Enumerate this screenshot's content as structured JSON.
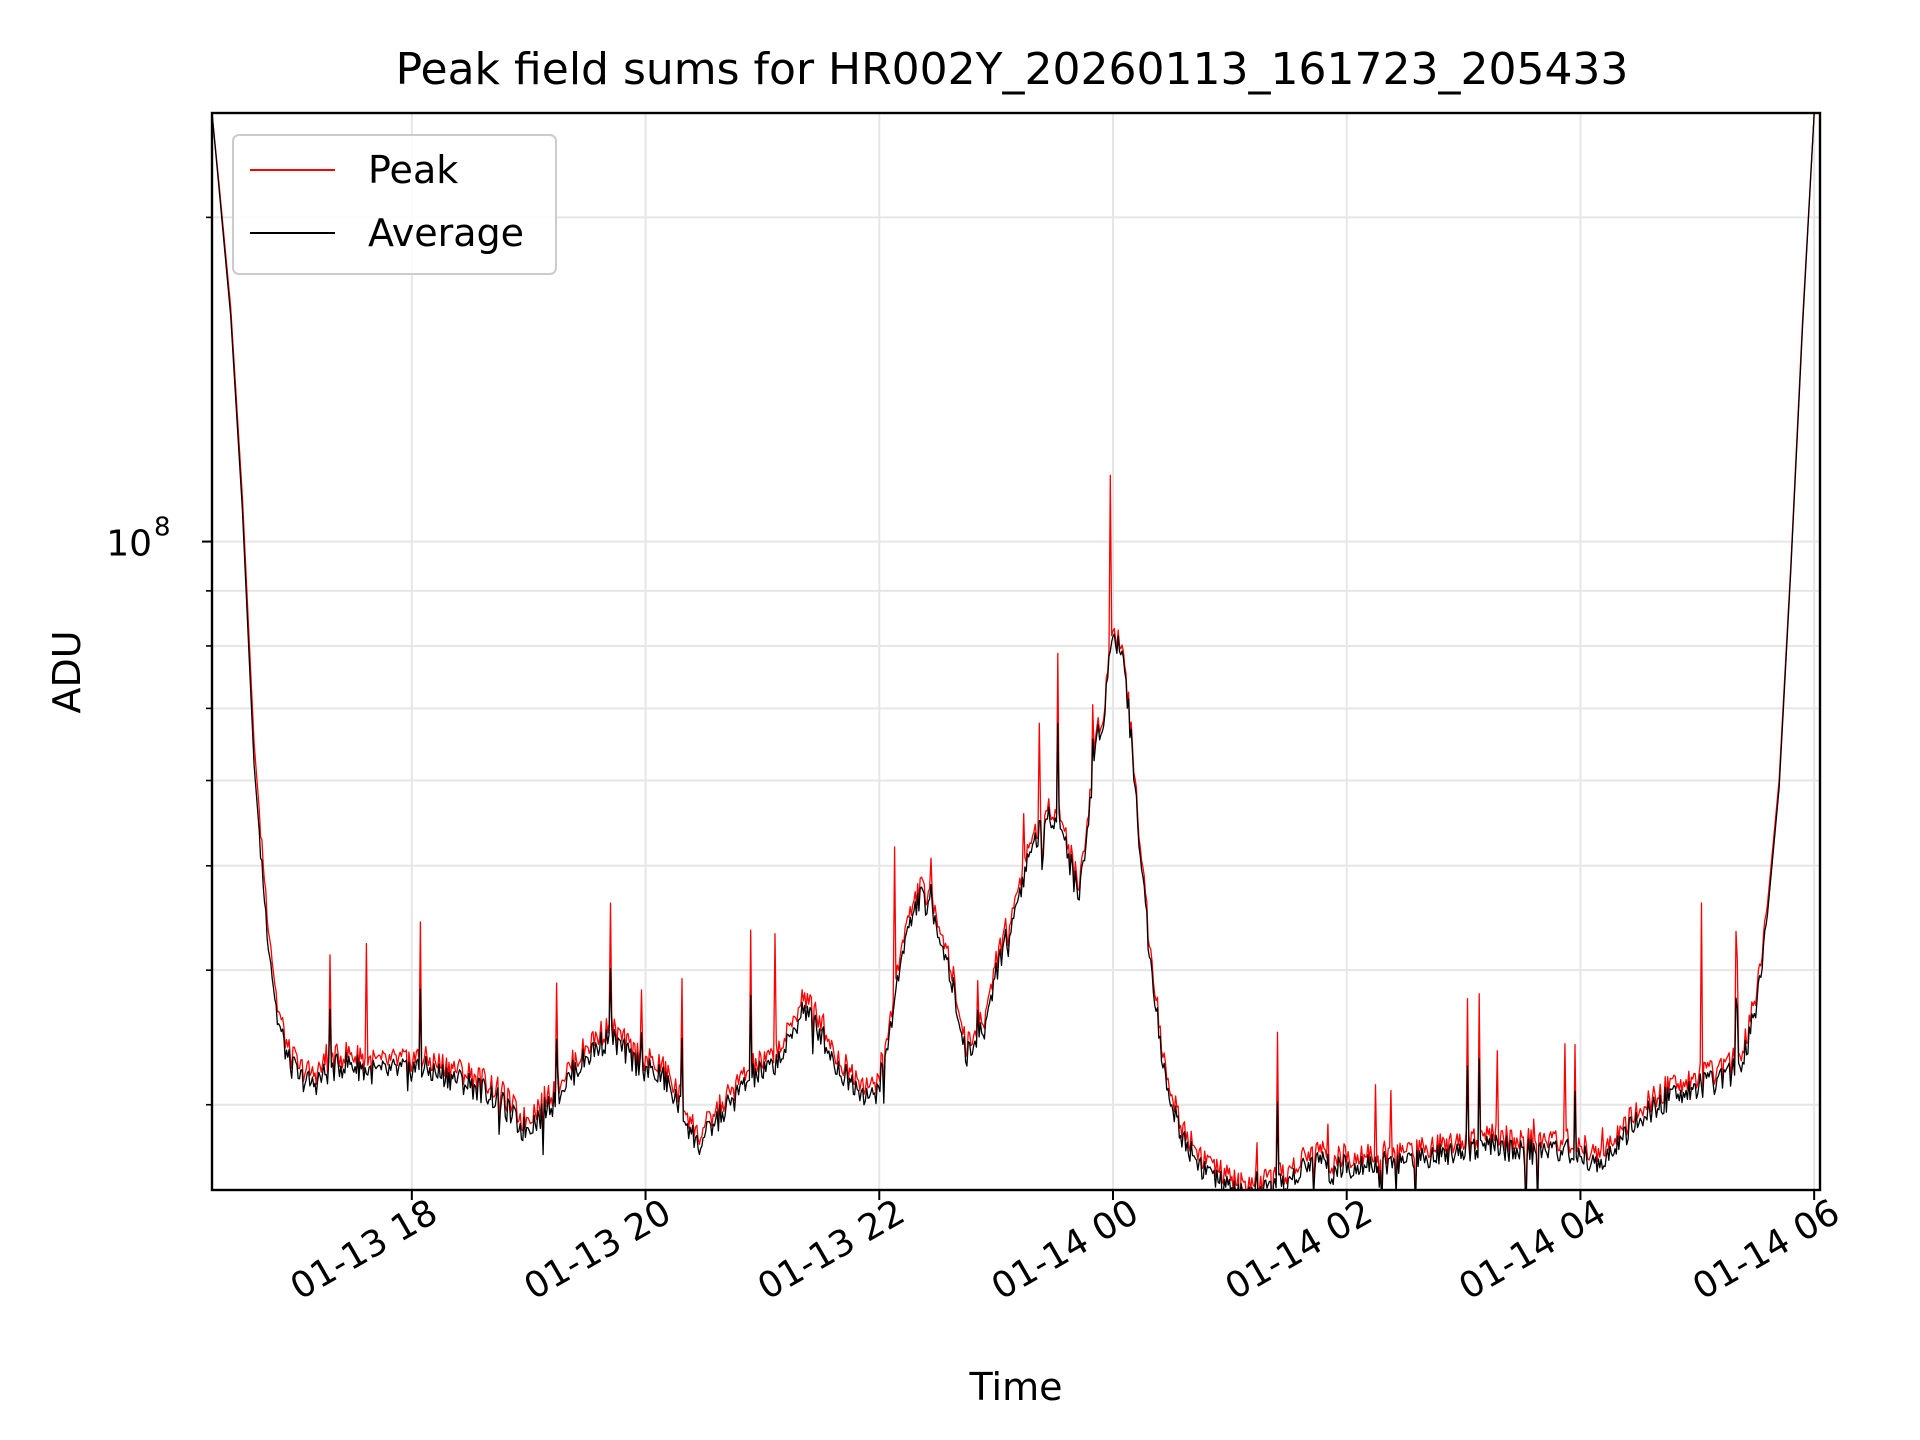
{
  "chart_data": {
    "type": "line",
    "title": "Peak field sums for HR002Y_20260113_161723_205433",
    "xlabel": "Time",
    "ylabel": "ADU",
    "yscale": "log",
    "ylim": [
      25000000,
      250000000
    ],
    "xlim_hours": [
      16.29,
      30.05
    ],
    "grid": true,
    "legend_position": "upper left",
    "x_ticks": [
      {
        "hour": 18,
        "label": "01-13 18"
      },
      {
        "hour": 20,
        "label": "01-13 20"
      },
      {
        "hour": 22,
        "label": "01-13 22"
      },
      {
        "hour": 24,
        "label": "01-14 00"
      },
      {
        "hour": 26,
        "label": "01-14 02"
      },
      {
        "hour": 28,
        "label": "01-14 04"
      },
      {
        "hour": 30,
        "label": "01-14 06"
      }
    ],
    "y_major_ticks": [
      {
        "value": 100000000,
        "label_base": "10",
        "label_exp": "8"
      }
    ],
    "y_minor_ticks": [
      30000000,
      40000000,
      50000000,
      60000000,
      70000000,
      80000000,
      90000000,
      200000000
    ],
    "series": [
      {
        "name": "Peak",
        "color": "#ff0000",
        "x_hours": [
          16.29,
          16.35,
          16.45,
          16.55,
          16.65,
          16.75,
          16.85,
          16.95,
          17.05,
          17.15,
          17.3,
          17.45,
          17.6,
          17.75,
          17.9,
          18.05,
          18.2,
          18.35,
          18.5,
          18.65,
          18.8,
          18.95,
          19.1,
          19.25,
          19.4,
          19.55,
          19.7,
          19.85,
          20.0,
          20.15,
          20.3,
          20.45,
          20.6,
          20.75,
          20.9,
          21.05,
          21.2,
          21.35,
          21.5,
          21.65,
          21.8,
          21.95,
          22.05,
          22.2,
          22.35,
          22.5,
          22.6,
          22.75,
          22.9,
          23.0,
          23.15,
          23.3,
          23.45,
          23.55,
          23.62,
          23.7,
          23.78,
          23.85,
          23.92,
          24.0,
          24.1,
          24.2,
          24.3,
          24.45,
          24.6,
          24.75,
          24.9,
          25.05,
          25.2,
          25.35,
          25.5,
          25.65,
          25.75,
          25.85,
          26.0,
          26.15,
          26.3,
          26.5,
          26.7,
          26.9,
          27.1,
          27.3,
          27.5,
          27.7,
          27.9,
          28.05,
          28.2,
          28.35,
          28.5,
          28.65,
          28.8,
          28.95,
          29.1,
          29.25,
          29.4,
          29.5,
          29.6,
          29.7,
          29.8,
          29.9,
          30.0,
          30.05
        ],
        "values": [
          250000000,
          215000000,
          165000000,
          110000000,
          65000000,
          47000000,
          37000000,
          33500000,
          32500000,
          32000000,
          33000000,
          33500000,
          33000000,
          32800000,
          33000000,
          33200000,
          32800000,
          32500000,
          32000000,
          31500000,
          30500000,
          29000000,
          30000000,
          31500000,
          33000000,
          34500000,
          35500000,
          34000000,
          33000000,
          32500000,
          30500000,
          28000000,
          29500000,
          31000000,
          32500000,
          33000000,
          34500000,
          38000000,
          36000000,
          33000000,
          32000000,
          31000000,
          33500000,
          43000000,
          48000000,
          45000000,
          41000000,
          34000000,
          36000000,
          41000000,
          46000000,
          53000000,
          57000000,
          56000000,
          52000000,
          48000000,
          54000000,
          66000000,
          70000000,
          84000000,
          78000000,
          58000000,
          44000000,
          32000000,
          28500000,
          27000000,
          26000000,
          25500000,
          25200000,
          25500000,
          26000000,
          26800000,
          27500000,
          26500000,
          26900000,
          27200000,
          27000000,
          27200000,
          27500000,
          27800000,
          28000000,
          28000000,
          27700000,
          27800000,
          27800000,
          27300000,
          27000000,
          28500000,
          29500000,
          30500000,
          31500000,
          31800000,
          32000000,
          32500000,
          34000000,
          38000000,
          46000000,
          60000000,
          95000000,
          160000000,
          250000000,
          250000000
        ]
      },
      {
        "name": "Average",
        "color": "#000000",
        "x_hours": [
          16.29,
          16.35,
          16.45,
          16.55,
          16.65,
          16.75,
          16.85,
          16.95,
          17.05,
          17.15,
          17.3,
          17.45,
          17.6,
          17.75,
          17.9,
          18.05,
          18.2,
          18.35,
          18.5,
          18.65,
          18.8,
          18.95,
          19.1,
          19.25,
          19.4,
          19.55,
          19.7,
          19.85,
          20.0,
          20.15,
          20.3,
          20.45,
          20.6,
          20.75,
          20.9,
          21.05,
          21.2,
          21.35,
          21.5,
          21.65,
          21.8,
          21.95,
          22.05,
          22.2,
          22.35,
          22.5,
          22.6,
          22.75,
          22.9,
          23.0,
          23.15,
          23.3,
          23.45,
          23.55,
          23.62,
          23.7,
          23.78,
          23.85,
          23.92,
          24.0,
          24.1,
          24.2,
          24.3,
          24.45,
          24.6,
          24.75,
          24.9,
          25.05,
          25.2,
          25.35,
          25.5,
          25.65,
          25.75,
          25.85,
          26.0,
          26.15,
          26.3,
          26.5,
          26.7,
          26.9,
          27.1,
          27.3,
          27.5,
          27.7,
          27.9,
          28.05,
          28.2,
          28.35,
          28.5,
          28.65,
          28.8,
          28.95,
          29.1,
          29.25,
          29.4,
          29.5,
          29.6,
          29.7,
          29.8,
          29.9,
          30.0,
          30.05
        ],
        "values": [
          250000000,
          213000000,
          162000000,
          107000000,
          62000000,
          45000000,
          36000000,
          32800000,
          31800000,
          31300000,
          32300000,
          32800000,
          32300000,
          32100000,
          32300000,
          32500000,
          32100000,
          31800000,
          31300000,
          30800000,
          29800000,
          28400000,
          29300000,
          30800000,
          32300000,
          33700000,
          34700000,
          33300000,
          32300000,
          31800000,
          29800000,
          27400000,
          28900000,
          30300000,
          31800000,
          32300000,
          33700000,
          37000000,
          35000000,
          32300000,
          31300000,
          30300000,
          32800000,
          42000000,
          47000000,
          44000000,
          40000000,
          33300000,
          35200000,
          40000000,
          45000000,
          52000000,
          56000000,
          55000000,
          51000000,
          47000000,
          53000000,
          65000000,
          69000000,
          83000000,
          77000000,
          57000000,
          43000000,
          31300000,
          27900000,
          26400000,
          25400000,
          24900000,
          24700000,
          24900000,
          25400000,
          26200000,
          26900000,
          25900000,
          26300000,
          26600000,
          26400000,
          26600000,
          26900000,
          27200000,
          27400000,
          27400000,
          27100000,
          27200000,
          27200000,
          26700000,
          26400000,
          27900000,
          28900000,
          29800000,
          30800000,
          31100000,
          31300000,
          31800000,
          33200000,
          37000000,
          45000000,
          59000000,
          94000000,
          158000000,
          250000000,
          250000000
        ]
      }
    ]
  },
  "colors": {
    "peak": "#ff0000",
    "average": "#000000",
    "grid": "#e6e6e6"
  }
}
